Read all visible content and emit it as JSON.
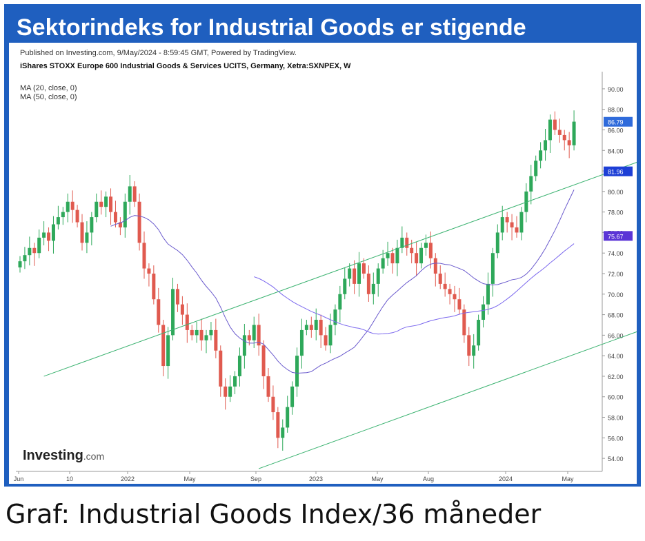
{
  "header": {
    "title": "Sektorindeks for Industrial Goods er stigende"
  },
  "chart_meta": {
    "published": "Published on Investing.com, 9/May/2024 - 8:59:45 GMT, Powered by TradingView.",
    "instrument": "iShares STOXX Europe 600 Industrial Goods & Services UCITS, Germany, Xetra:SXNPEX, W",
    "ma_legend": [
      "MA (20, close, 0)",
      "MA (50, close, 0)"
    ],
    "logo_main": "Investing",
    "logo_suffix": ".com"
  },
  "caption": "Graf: Industrial Goods Index/36 måneder",
  "colors": {
    "banner": "#1f5fbf",
    "up_candle": "#2ea85a",
    "down_candle": "#e05a4f",
    "ma20": "#6a5acd",
    "ma50": "#7b68ee",
    "trend": "#3cb371",
    "label_last": "#2f6bdb",
    "label_ma20": "#1d3fd6",
    "label_ma50": "#5b35d6"
  },
  "chart_data": {
    "type": "candlestick",
    "x_tick_labels": [
      "Jun",
      "10",
      "2022",
      "May",
      "Sep",
      "2023",
      "May",
      "Aug",
      "2024",
      "May"
    ],
    "y_ticks": [
      54,
      56,
      58,
      60,
      62,
      64,
      66,
      68,
      70,
      72,
      74,
      76,
      78,
      80,
      82,
      84,
      86,
      88,
      90
    ],
    "ylim": [
      53,
      91
    ],
    "price_labels": {
      "last": 86.79,
      "ma20": 81.96,
      "ma50": 75.67
    },
    "closes": [
      73.2,
      73.8,
      74.5,
      74.0,
      75.5,
      76.0,
      75.2,
      76.8,
      77.5,
      78.0,
      79.0,
      78.2,
      77.0,
      75.0,
      76.0,
      77.5,
      79.0,
      78.5,
      79.5,
      78.0,
      77.0,
      76.5,
      79.0,
      80.5,
      79.0,
      75.0,
      72.5,
      72.0,
      69.5,
      67.0,
      63.0,
      66.0,
      70.5,
      69.0,
      68.0,
      66.5,
      66.0,
      66.5,
      65.5,
      66.0,
      66.5,
      64.5,
      61.0,
      60.0,
      61.0,
      62.0,
      64.0,
      66.0,
      65.5,
      67.0,
      65.0,
      62.0,
      60.0,
      58.5,
      56.0,
      57.0,
      59.0,
      61.0,
      64.0,
      66.5,
      67.0,
      66.5,
      67.5,
      66.0,
      65.0,
      67.0,
      68.5,
      70.0,
      71.5,
      72.5,
      71.0,
      73.0,
      72.0,
      70.0,
      71.0,
      72.5,
      73.5,
      74.0,
      73.0,
      74.5,
      75.5,
      74.5,
      74.0,
      73.0,
      74.5,
      75.0,
      73.5,
      72.0,
      71.0,
      70.5,
      70.0,
      69.5,
      68.5,
      66.0,
      64.0,
      65.0,
      67.5,
      69.0,
      71.0,
      74.0,
      76.0,
      77.5,
      77.0,
      76.5,
      76.0,
      78.0,
      80.0,
      81.5,
      83.0,
      84.0,
      85.0,
      87.0,
      86.0,
      85.5,
      85.0,
      84.5,
      86.8
    ],
    "trend_lines": [
      {
        "from": [
          "Nov 2021",
          62.0
        ],
        "to": [
          "May 2024",
          85.0
        ]
      },
      {
        "from": [
          "Sep 2022",
          53.0
        ],
        "to": [
          "May 2024",
          68.5
        ]
      }
    ]
  }
}
